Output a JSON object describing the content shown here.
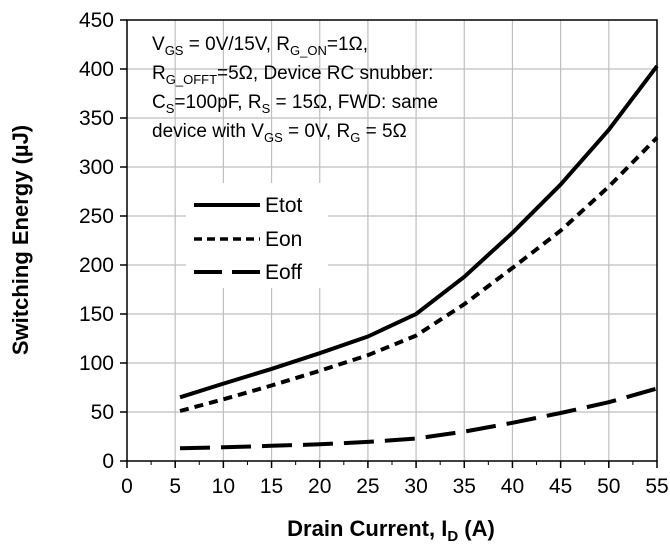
{
  "chart_data": {
    "type": "line",
    "xlabel_main": "Drain Current, I",
    "xlabel_sub": "D",
    "xlabel_tail": " (A)",
    "ylabel": "Switching Energy (µJ)",
    "xlim": [
      0,
      55
    ],
    "ylim": [
      0,
      450
    ],
    "xticks": [
      0,
      5,
      10,
      15,
      20,
      25,
      30,
      35,
      40,
      45,
      50,
      55
    ],
    "yticks": [
      0,
      50,
      100,
      150,
      200,
      250,
      300,
      350,
      400,
      450
    ],
    "grid": true,
    "legend_position": "left-middle",
    "annotation": {
      "line1": {
        "a": "V",
        "a_sub": "GS",
        "b": " = 0V/15V, R",
        "b_sub": "G_ON",
        "c": "=1Ω,"
      },
      "line2": {
        "a": "R",
        "a_sub": "G_OFFT",
        "b": "=5Ω,  Device RC snubber:"
      },
      "line3": {
        "a": "C",
        "a_sub": "S",
        "b": "=100pF,   R",
        "b_sub": "S",
        "c": " = 15Ω, FWD: same"
      },
      "line4": {
        "a": "device with V",
        "a_sub": "GS",
        "b": " = 0V, R",
        "b_sub": "G",
        "c": " = 5Ω"
      }
    },
    "series": [
      {
        "name": "Etot",
        "style": "solid",
        "x": [
          5.5,
          10,
          15,
          20,
          25,
          30,
          35,
          40,
          45,
          50,
          55
        ],
        "y": [
          65,
          79,
          94,
          110,
          127,
          150,
          188,
          233,
          282,
          338,
          403
        ]
      },
      {
        "name": "Eon",
        "style": "short-dash",
        "x": [
          5.5,
          10,
          15,
          20,
          25,
          30,
          35,
          40,
          45,
          50,
          55
        ],
        "y": [
          51,
          63,
          77,
          92,
          108,
          128,
          160,
          197,
          235,
          280,
          330
        ]
      },
      {
        "name": "Eoff",
        "style": "long-dash",
        "x": [
          5.5,
          10,
          15,
          20,
          25,
          30,
          35,
          40,
          45,
          50,
          55
        ],
        "y": [
          13,
          14,
          15.5,
          17,
          19.5,
          23,
          30,
          39,
          49,
          60,
          74
        ]
      }
    ],
    "colors": {
      "lines": "#000000",
      "grid": "#bfbfbf",
      "axes": "#000000"
    }
  }
}
